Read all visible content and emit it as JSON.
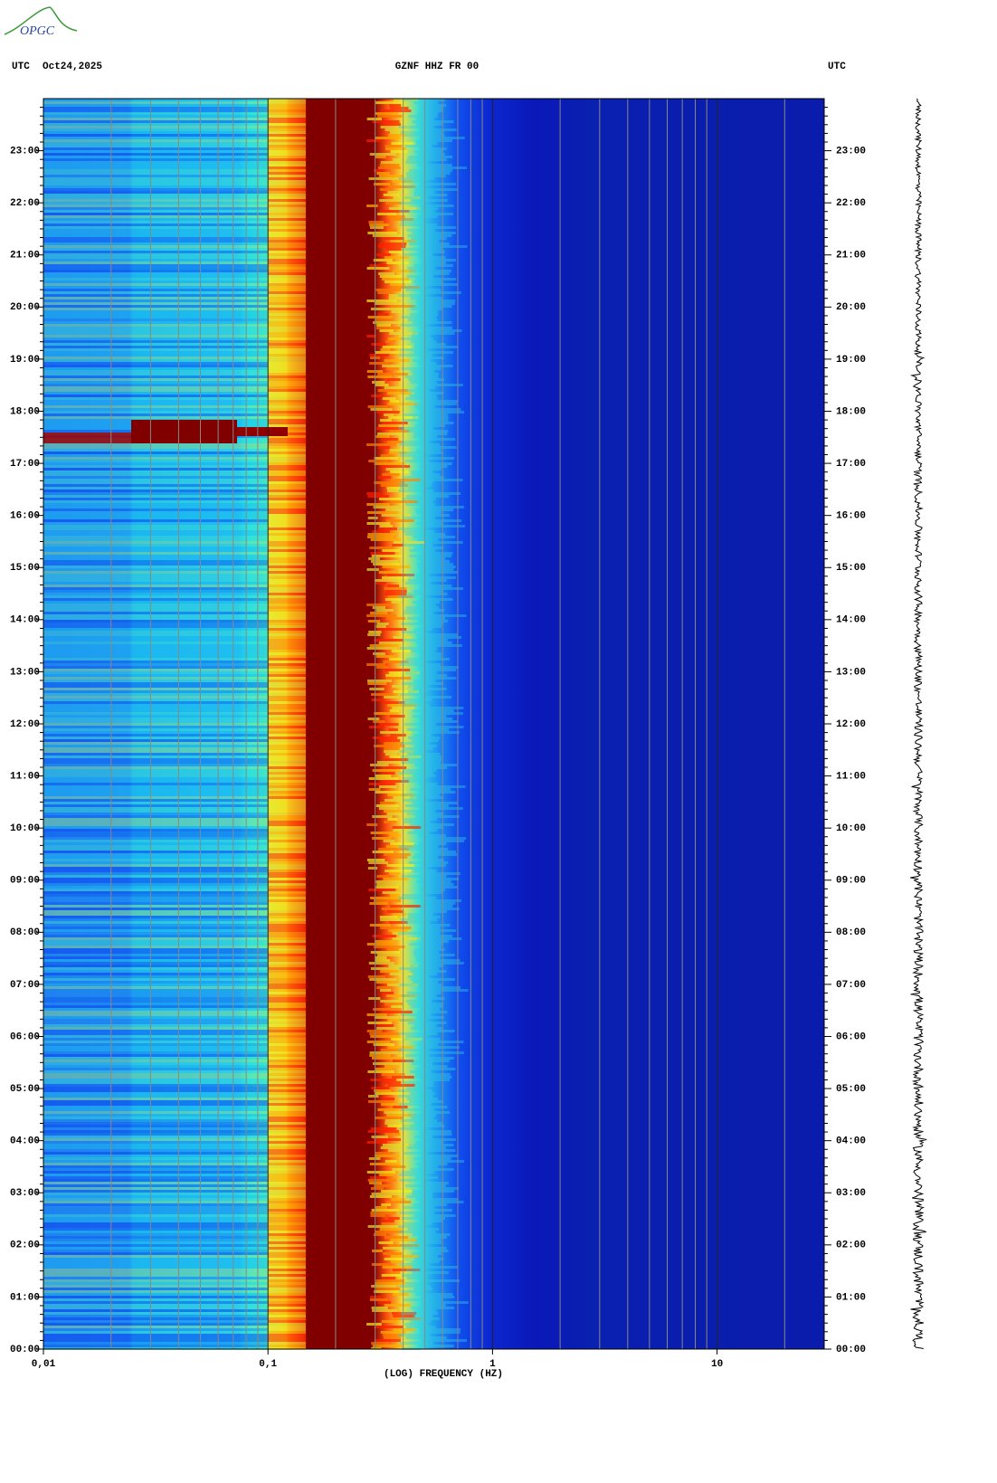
{
  "logo": "OPGC",
  "chart_data": {
    "type": "spectrogram",
    "title": "GZNF HHZ FR 00",
    "date": "Oct24,2025",
    "left_label": "UTC",
    "right_label": "UTC",
    "xlabel": "(LOG) FREQUENCY (HZ)",
    "xscale": "log",
    "xlim": [
      0.01,
      30
    ],
    "xticks": [
      {
        "value": 0.01,
        "label": "0,01"
      },
      {
        "value": 0.1,
        "label": "0,1"
      },
      1,
      10
    ],
    "ylim": [
      0,
      24
    ],
    "yticks": [
      {
        "value": 0,
        "label": "00:00"
      },
      {
        "value": 1,
        "label": "01:00"
      },
      {
        "value": 2,
        "label": "02:00"
      },
      {
        "value": 3,
        "label": "03:00"
      },
      {
        "value": 4,
        "label": "04:00"
      },
      {
        "value": 5,
        "label": "05:00"
      },
      {
        "value": 6,
        "label": "06:00"
      },
      {
        "value": 7,
        "label": "07:00"
      },
      {
        "value": 8,
        "label": "08:00"
      },
      {
        "value": 9,
        "label": "09:00"
      },
      {
        "value": 10,
        "label": "10:00"
      },
      {
        "value": 11,
        "label": "11:00"
      },
      {
        "value": 12,
        "label": "12:00"
      },
      {
        "value": 13,
        "label": "13:00"
      },
      {
        "value": 14,
        "label": "14:00"
      },
      {
        "value": 15,
        "label": "15:00"
      },
      {
        "value": 16,
        "label": "16:00"
      },
      {
        "value": 17,
        "label": "17:00"
      },
      {
        "value": 18,
        "label": "18:00"
      },
      {
        "value": 19,
        "label": "19:00"
      },
      {
        "value": 20,
        "label": "20:00"
      },
      {
        "value": 21,
        "label": "21:00"
      },
      {
        "value": 22,
        "label": "22:00"
      },
      {
        "value": 23,
        "label": "23:00"
      }
    ]
  }
}
